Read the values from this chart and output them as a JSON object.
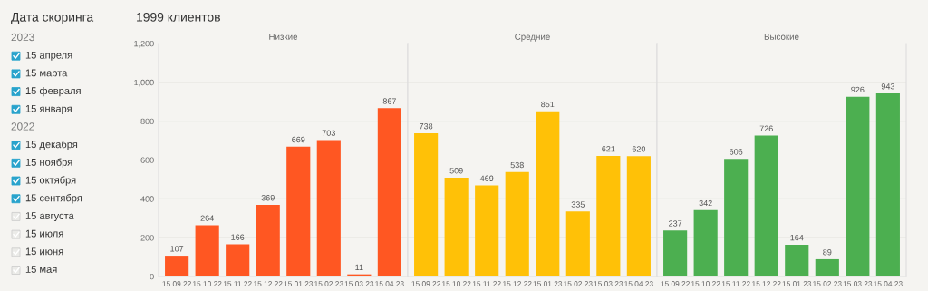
{
  "chart_data": [
    {
      "type": "other",
      "title": "Дата скоринга",
      "annotations": [
        "2023",
        "15 апреля",
        "15 марта",
        "15 февраля",
        "15 января",
        "2022",
        "15 декабря",
        "15 ноября",
        "15 октября",
        "15 сентября",
        "15 августа",
        "15 июля",
        "15 июня",
        "15 мая"
      ],
      "colors": [
        null,
        "#29a3cc",
        "#29a3cc",
        "#29a3cc",
        "#29a3cc",
        null,
        "#29a3cc",
        "#29a3cc",
        "#29a3cc",
        "#29a3cc",
        "#ebebe8",
        "#ebebe8",
        "#ebebe8",
        "#ebebe8"
      ]
    },
    {
      "type": "bar",
      "title": "1999 клиентов",
      "subtitle": "Низкие",
      "categories": [
        "15.09.22",
        "15.10.22",
        "15.11.22",
        "15.12.22",
        "15.01.23",
        "15.02.23",
        "15.03.23",
        "15.04.23"
      ],
      "values": [
        107,
        264,
        166,
        369,
        669,
        703,
        11,
        867
      ],
      "color": "#ff5722",
      "ylim": [
        0,
        1200
      ],
      "yticks": [
        0,
        200,
        400,
        600,
        800,
        {
          "value": 1000,
          "label": "1,000"
        },
        {
          "value": 1200,
          "label": "1,200"
        }
      ],
      "grid": "y",
      "data_labels": true
    },
    {
      "type": "bar",
      "subtitle": "Средние",
      "categories": [
        "15.09.22",
        "15.10.22",
        "15.11.22",
        "15.12.22",
        "15.01.23",
        "15.02.23",
        "15.03.23",
        "15.04.23"
      ],
      "values": [
        738,
        509,
        469,
        538,
        851,
        335,
        621,
        620
      ],
      "color": "#ffc107",
      "ylim": [
        0,
        1200
      ],
      "yticks": [
        0,
        200,
        400,
        600,
        800,
        1000,
        1200
      ],
      "grid": "y",
      "data_labels": true,
      "tick_labels": "x"
    },
    {
      "type": "bar",
      "subtitle": "Высокие",
      "categories": [
        "15.09.22",
        "15.10.22",
        "15.11.22",
        "15.12.22",
        "15.01.23",
        "15.02.23",
        "15.03.23",
        "15.04.23"
      ],
      "values": [
        237,
        342,
        606,
        726,
        164,
        89,
        926,
        943
      ],
      "color": "#4caf50",
      "ylim": [
        0,
        1200
      ],
      "yticks": [
        0,
        200,
        400,
        600,
        800,
        1000,
        1200
      ],
      "grid": "y",
      "data_labels": true,
      "tick_labels": "x"
    }
  ]
}
